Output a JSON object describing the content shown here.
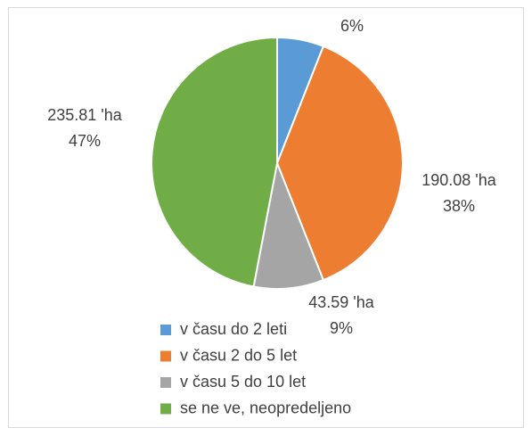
{
  "chart_data": {
    "type": "pie",
    "categories": [
      "v času do 2 leti",
      "v času 2 do 5 let",
      "v času 5 do 10 let",
      "se ne ve, neopredeljeno"
    ],
    "values": [
      6,
      38,
      9,
      47
    ],
    "value_labels": [
      "6%",
      "38%",
      "9%",
      "47%"
    ],
    "amount_labels": [
      null,
      "190.08 'ha",
      "43.59 'ha",
      "235.81 'ha"
    ],
    "colors": [
      "#5b9bd5",
      "#ed7d31",
      "#a5a5a5",
      "#70ad47"
    ],
    "legend": "bottom"
  }
}
